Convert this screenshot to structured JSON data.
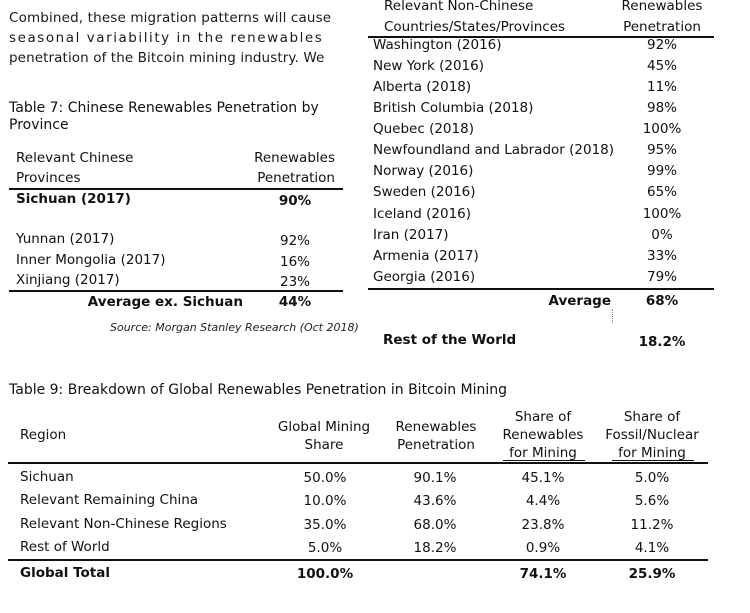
{
  "paragraph": {
    "lines": [
      "Combined, these migration patterns will cause",
      "seasonal variability in the renewables",
      "penetration of the Bitcoin mining industry. We"
    ]
  },
  "table7": {
    "caption_line1": "Table 7: Chinese Renewables Penetration by",
    "caption_line2": "Province",
    "header": {
      "col1_line1": "Relevant Chinese",
      "col1_line2": "Provinces",
      "col2_line1": "Renewables",
      "col2_line2": "Penetration"
    },
    "rows": [
      {
        "province": "Sichuan (2017)",
        "value": "90%"
      },
      {
        "province": "Yunnan (2017)",
        "value": "92%"
      },
      {
        "province": "Inner Mongolia (2017)",
        "value": "16%"
      },
      {
        "province": "Xinjiang (2017)",
        "value": "23%"
      }
    ],
    "average": {
      "label": "Average ex. Sichuan",
      "value": "44%"
    },
    "source": "Source: Morgan Stanley Research (Oct 2018)"
  },
  "table8": {
    "header": {
      "col1_line1": "Relevant Non-Chinese",
      "col1_line2": "Countries/States/Provinces",
      "col2_line1": "Renewables",
      "col2_line2": "Penetration"
    },
    "rows": [
      {
        "region": "Washington (2016)",
        "value": "92%"
      },
      {
        "region": "New York (2016)",
        "value": "45%"
      },
      {
        "region": "Alberta (2018)",
        "value": "11%"
      },
      {
        "region": "British Columbia (2018)",
        "value": "98%"
      },
      {
        "region": "Quebec (2018)",
        "value": "100%"
      },
      {
        "region": "Newfoundland and Labrador (2018)",
        "value": "95%"
      },
      {
        "region": "Norway (2016)",
        "value": "99%"
      },
      {
        "region": "Sweden (2016)",
        "value": "65%"
      },
      {
        "region": "Iceland (2016)",
        "value": "100%"
      },
      {
        "region": "Iran (2017)",
        "value": "0%"
      },
      {
        "region": "Armenia (2017)",
        "value": "33%"
      },
      {
        "region": "Georgia (2016)",
        "value": "79%"
      }
    ],
    "average": {
      "label": "Average",
      "value": "68%"
    },
    "rest_of_world": {
      "label": "Rest of the World",
      "value": "18.2%"
    }
  },
  "table9": {
    "caption": "Table 9: Breakdown of Global Renewables Penetration in Bitcoin Mining",
    "header": {
      "region": "Region",
      "global_share_line1": "Global Mining",
      "global_share_line2": "Share",
      "renewables_line1": "Renewables",
      "renewables_line2": "Penetration",
      "share_renew_line1": "Share of",
      "share_renew_line2": "Renewables",
      "share_renew_line3": "for Mining",
      "share_fossil_line1": "Share of",
      "share_fossil_line2": "Fossil/Nuclear",
      "share_fossil_line3": "for Mining"
    },
    "rows": [
      {
        "region": "Sichuan",
        "global_share": "50.0%",
        "renewables": "90.1%",
        "share_renew": "45.1%",
        "share_fossil": "5.0%"
      },
      {
        "region": "Relevant Remaining China",
        "global_share": "10.0%",
        "renewables": "43.6%",
        "share_renew": "4.4%",
        "share_fossil": "5.6%"
      },
      {
        "region": "Relevant Non-Chinese Regions",
        "global_share": "35.0%",
        "renewables": "68.0%",
        "share_renew": "23.8%",
        "share_fossil": "11.2%"
      },
      {
        "region": "Rest of World",
        "global_share": "5.0%",
        "renewables": "18.2%",
        "share_renew": "0.9%",
        "share_fossil": "4.1%"
      }
    ],
    "total": {
      "region": "Global Total",
      "global_share": "100.0%",
      "share_renew": "74.1%",
      "share_fossil": "25.9%"
    }
  }
}
